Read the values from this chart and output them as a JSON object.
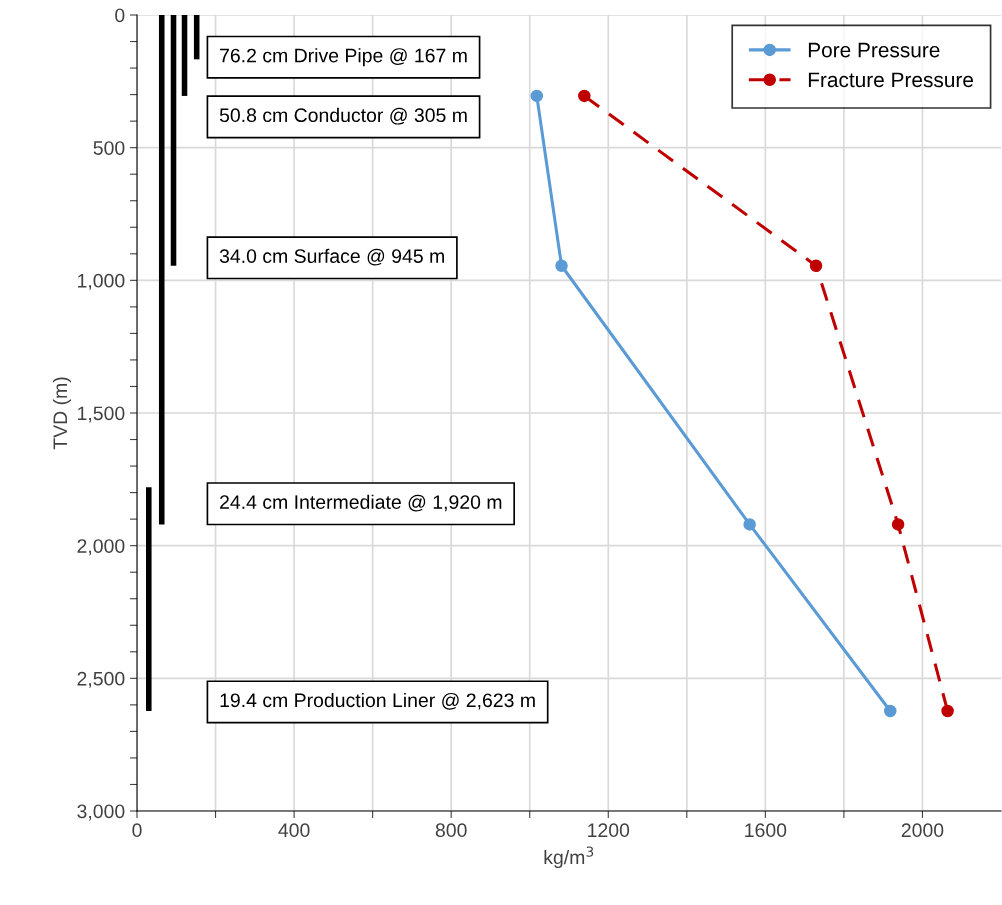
{
  "chart_data": {
    "type": "line",
    "xlabel": "kg/m$^{3}$",
    "ylabel": "TVD (m)",
    "xlim": [
      0,
      2200
    ],
    "xticks": [
      0,
      {
        "value": 200,
        "label": null
      },
      400,
      {
        "value": 600,
        "label": null
      },
      800,
      {
        "value": 1000,
        "label": null
      },
      1200,
      {
        "value": 1400,
        "label": null
      },
      1600,
      {
        "value": 1800,
        "label": null
      },
      2000
    ],
    "ylim": [
      3000,
      0
    ],
    "yticks": [
      {
        "value": 0,
        "label": "0"
      },
      {
        "value": 100,
        "label": null
      },
      {
        "value": 200,
        "label": null
      },
      {
        "value": 300,
        "label": null
      },
      {
        "value": 400,
        "label": null
      },
      {
        "value": 500,
        "label": "500"
      },
      {
        "value": 600,
        "label": null
      },
      {
        "value": 700,
        "label": null
      },
      {
        "value": 800,
        "label": null
      },
      {
        "value": 900,
        "label": null
      },
      {
        "value": 1000,
        "label": "1,000"
      },
      {
        "value": 1100,
        "label": null
      },
      {
        "value": 1200,
        "label": null
      },
      {
        "value": 1300,
        "label": null
      },
      {
        "value": 1400,
        "label": null
      },
      {
        "value": 1500,
        "label": "1,500"
      },
      {
        "value": 1600,
        "label": null
      },
      {
        "value": 1700,
        "label": null
      },
      {
        "value": 1800,
        "label": null
      },
      {
        "value": 1900,
        "label": null
      },
      {
        "value": 2000,
        "label": "2,000"
      },
      {
        "value": 2100,
        "label": null
      },
      {
        "value": 2200,
        "label": null
      },
      {
        "value": 2300,
        "label": null
      },
      {
        "value": 2400,
        "label": null
      },
      {
        "value": 2500,
        "label": "2,500"
      },
      {
        "value": 2600,
        "label": null
      },
      {
        "value": 2700,
        "label": null
      },
      {
        "value": 2800,
        "label": null
      },
      {
        "value": 2900,
        "label": null
      },
      {
        "value": 3000,
        "label": "3,000"
      }
    ],
    "grid": true,
    "legend": "top right",
    "series": [
      {
        "name": "Pore Pressure",
        "color": "#5b9bd5",
        "marker": "circle",
        "line_style": "solid",
        "x": [
          1018,
          1081,
          1560,
          1918
        ],
        "values": [
          305,
          945,
          1920,
          2623
        ]
      },
      {
        "name": "Fracture Pressure",
        "color": "#c00000",
        "marker": "circle",
        "line_style": "dashed",
        "x": [
          1139,
          1729,
          1938,
          2064
        ],
        "values": [
          305,
          945,
          1920,
          2623
        ]
      },
      {
        "color": "#000000",
        "marker": "none",
        "line_style": "solid",
        "x": [
          152,
          152
        ],
        "values": [
          0,
          167
        ]
      },
      {
        "color": "#000000",
        "marker": "none",
        "line_style": "solid",
        "x": [
          121,
          121
        ],
        "values": [
          0,
          305
        ]
      },
      {
        "color": "#000000",
        "marker": "none",
        "line_style": "solid",
        "x": [
          93,
          93
        ],
        "values": [
          0,
          945
        ]
      },
      {
        "color": "#000000",
        "marker": "none",
        "line_style": "solid",
        "x": [
          63,
          63
        ],
        "values": [
          0,
          1920
        ]
      },
      {
        "color": "#000000",
        "marker": "none",
        "line_style": "solid",
        "x": [
          30,
          30
        ],
        "values": [
          1780,
          2623
        ]
      }
    ],
    "annotations": [
      "76.2 cm Drive Pipe @ 167 m",
      "50.8 cm Conductor @ 305 m",
      "34.0 cm Surface @ 945 m",
      "24.4 cm Intermediate @ 1,920 m",
      "19.4 cm Production Liner @ 2,623 m"
    ]
  }
}
